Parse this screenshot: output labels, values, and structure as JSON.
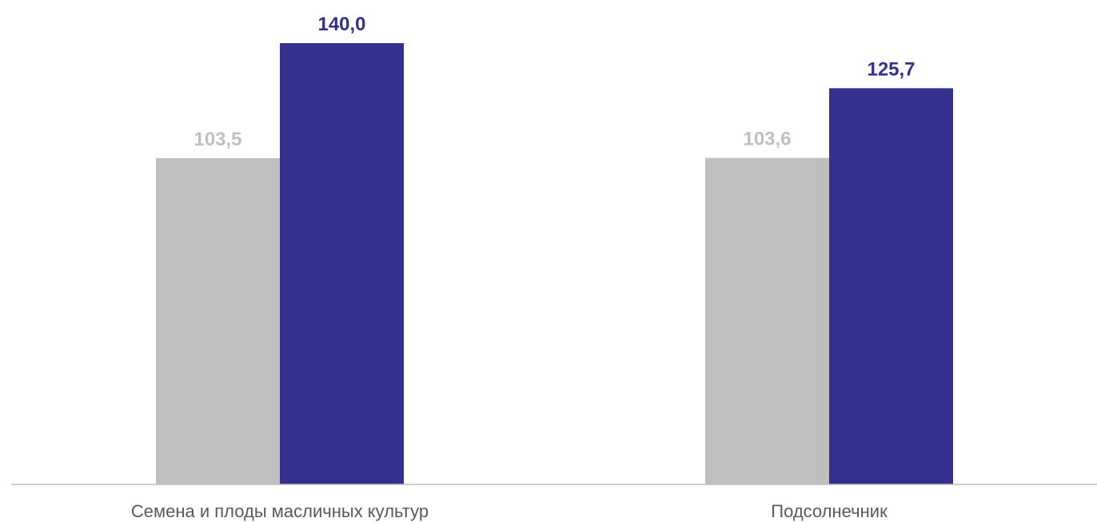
{
  "chart_data": {
    "type": "bar",
    "categories": [
      "Семена и плоды масличных культур",
      "Подсолнечник"
    ],
    "series": [
      {
        "values": [
          103.5,
          103.6
        ],
        "color": "#bfbfbf"
      },
      {
        "values": [
          140.0,
          125.7
        ],
        "color": "#343090"
      }
    ],
    "data_labels": [
      [
        "103,5",
        "103,6"
      ],
      [
        "140,0",
        "125,7"
      ]
    ],
    "title": "",
    "xlabel": "",
    "ylabel": "",
    "ylim": [
      0,
      140
    ],
    "grid": false,
    "legend": "none",
    "axis_color": "#bfbfbf"
  }
}
